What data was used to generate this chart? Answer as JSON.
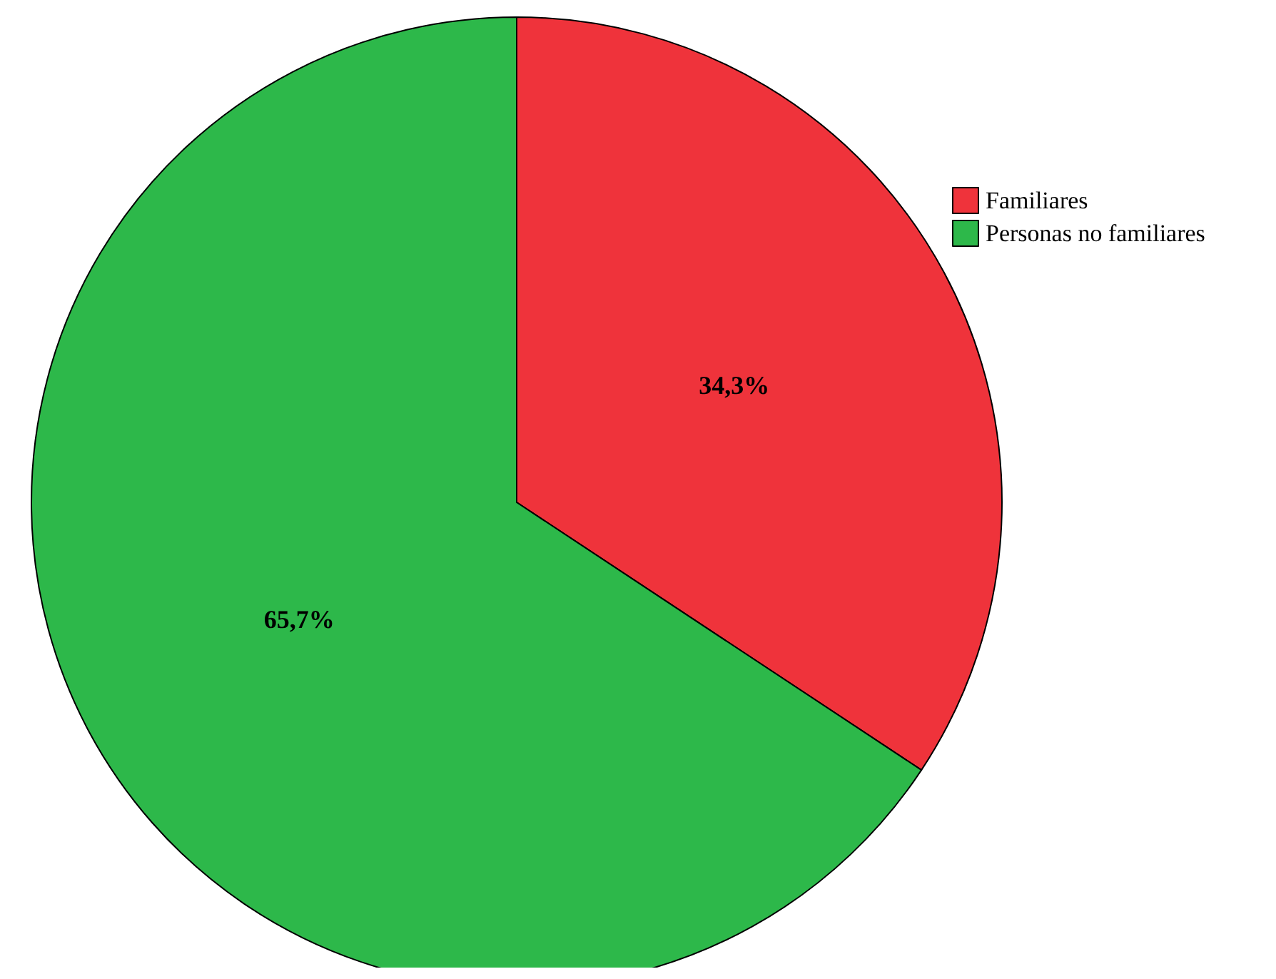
{
  "chart_data": {
    "type": "pie",
    "categories": [
      "Familiares",
      "Personas no familiares"
    ],
    "values": [
      34.3,
      65.7
    ],
    "colors": [
      "#ef333b",
      "#2db84a"
    ],
    "value_labels": [
      "34,3%",
      "65,7%"
    ],
    "legend": "right"
  }
}
